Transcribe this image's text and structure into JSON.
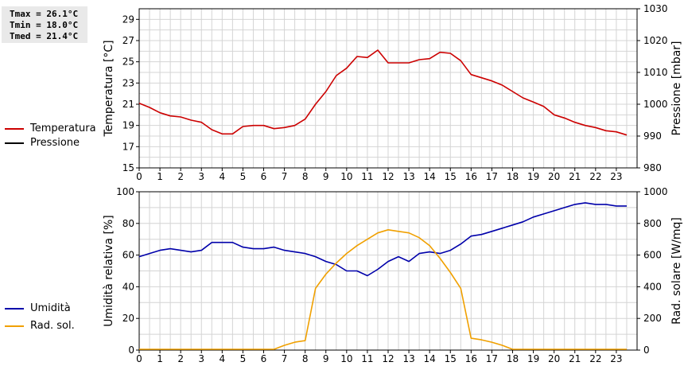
{
  "stats": {
    "tmax": "Tmax = 26.1°C",
    "tmin": "Tmin = 18.0°C",
    "tmed": "Tmed = 21.4°C"
  },
  "colors": {
    "temperature": "#cc0000",
    "pressure": "#000000",
    "humidity": "#0000aa",
    "radiation": "#f0a000",
    "grid": "#d4d4d4"
  },
  "legend_top": [
    {
      "label": "Temperatura",
      "color": "#cc0000"
    },
    {
      "label": "Pressione",
      "color": "#000000"
    }
  ],
  "legend_bottom": [
    {
      "label": "Umidità",
      "color": "#0000aa"
    },
    {
      "label": "Rad. sol.",
      "color": "#f0a000"
    }
  ],
  "chart_data": [
    {
      "type": "line",
      "ylabel": "Temperatura [°C]",
      "y2label": "Pressione [mbar]",
      "xlim": [
        0,
        24
      ],
      "ylim": [
        15,
        30
      ],
      "y2lim": [
        980,
        1030
      ],
      "x_ticks": [
        0,
        1,
        2,
        3,
        4,
        5,
        6,
        7,
        8,
        9,
        10,
        11,
        12,
        13,
        14,
        15,
        16,
        17,
        18,
        19,
        20,
        21,
        22,
        23
      ],
      "y_ticks": [
        15,
        17,
        19,
        21,
        23,
        25,
        27,
        29
      ],
      "y2_ticks": [
        980,
        990,
        1000,
        1010,
        1020,
        1030
      ],
      "grid": true,
      "legend_position": "left",
      "series": [
        {
          "name": "Temperatura",
          "axis": "left",
          "x": [
            0,
            0.5,
            1,
            1.5,
            2,
            2.5,
            3,
            3.5,
            4,
            4.5,
            5,
            5.5,
            6,
            6.5,
            7,
            7.5,
            8,
            8.5,
            9,
            9.5,
            10,
            10.5,
            11,
            11.5,
            12,
            12.5,
            13,
            13.5,
            14,
            14.5,
            15,
            15.5,
            16,
            16.5,
            17,
            17.5,
            18,
            18.5,
            19,
            19.5,
            20,
            20.5,
            21,
            21.5,
            22,
            22.5,
            23,
            23.5
          ],
          "values": [
            21.1,
            20.7,
            20.2,
            19.9,
            19.8,
            19.5,
            19.3,
            18.6,
            18.2,
            18.2,
            18.9,
            19.0,
            19.0,
            18.7,
            18.8,
            19.0,
            19.6,
            21.0,
            22.2,
            23.7,
            24.4,
            25.5,
            25.4,
            26.1,
            24.9,
            24.9,
            24.9,
            25.2,
            25.3,
            25.9,
            25.8,
            25.1,
            23.8,
            23.5,
            23.2,
            22.8,
            22.2,
            21.6,
            21.2,
            20.8,
            20.0,
            19.7,
            19.3,
            19.0,
            18.8,
            18.5,
            18.4,
            18.1
          ]
        }
      ]
    },
    {
      "type": "line",
      "ylabel": "Umidità relativa [%]",
      "y2label": "Rad. solare [W/mq]",
      "xlim": [
        0,
        24
      ],
      "ylim": [
        0,
        100
      ],
      "y2lim": [
        0,
        1000
      ],
      "x_ticks": [
        0,
        1,
        2,
        3,
        4,
        5,
        6,
        7,
        8,
        9,
        10,
        11,
        12,
        13,
        14,
        15,
        16,
        17,
        18,
        19,
        20,
        21,
        22,
        23
      ],
      "y_ticks": [
        0,
        20,
        40,
        60,
        80,
        100
      ],
      "y2_ticks": [
        0,
        200,
        400,
        600,
        800,
        1000
      ],
      "grid": true,
      "legend_position": "left",
      "series": [
        {
          "name": "Umidità",
          "axis": "left",
          "x": [
            0,
            0.5,
            1,
            1.5,
            2,
            2.5,
            3,
            3.5,
            4,
            4.5,
            5,
            5.5,
            6,
            6.5,
            7,
            7.5,
            8,
            8.5,
            9,
            9.5,
            10,
            10.5,
            11,
            11.5,
            12,
            12.5,
            13,
            13.5,
            14,
            14.5,
            15,
            15.5,
            16,
            16.5,
            17,
            17.5,
            18,
            18.5,
            19,
            19.5,
            20,
            20.5,
            21,
            21.5,
            22,
            22.5,
            23,
            23.5
          ],
          "values": [
            59,
            61,
            63,
            64,
            63,
            62,
            63,
            68,
            68,
            68,
            65,
            64,
            64,
            65,
            63,
            62,
            61,
            59,
            56,
            54,
            50,
            50,
            47,
            51,
            56,
            59,
            56,
            61,
            62,
            61,
            63,
            67,
            72,
            73,
            75,
            77,
            79,
            81,
            84,
            86,
            88,
            90,
            92,
            93,
            92,
            92,
            91,
            91
          ]
        },
        {
          "name": "Rad. sol.",
          "axis": "right",
          "x": [
            0,
            0.5,
            1,
            1.5,
            2,
            2.5,
            3,
            3.5,
            4,
            4.5,
            5,
            5.5,
            6,
            6.5,
            7,
            7.5,
            8,
            8.5,
            9,
            9.5,
            10,
            10.5,
            11,
            11.5,
            12,
            12.5,
            13,
            13.5,
            14,
            14.5,
            15,
            15.5,
            16,
            16.5,
            17,
            17.5,
            18,
            18.5,
            19,
            19.5,
            20,
            20.5,
            21,
            21.5,
            22,
            22.5,
            23,
            23.5
          ],
          "values": [
            5,
            5,
            5,
            5,
            5,
            5,
            5,
            5,
            5,
            5,
            5,
            5,
            5,
            5,
            30,
            50,
            60,
            390,
            480,
            550,
            610,
            660,
            700,
            740,
            760,
            750,
            740,
            710,
            660,
            580,
            490,
            390,
            75,
            65,
            50,
            30,
            5,
            5,
            5,
            5,
            5,
            5,
            5,
            5,
            5,
            5,
            5,
            5
          ]
        }
      ]
    }
  ]
}
